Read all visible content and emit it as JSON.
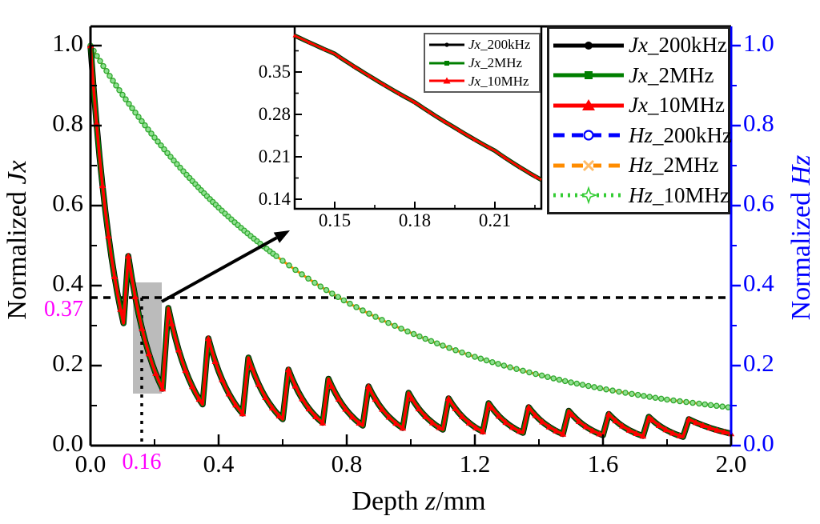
{
  "chart_data": {
    "type": "line",
    "title": "",
    "xlabel": "Depth z/mm",
    "ylabel_left": "Normalized Jx",
    "ylabel_right": "Normalized Hz",
    "xlim": [
      0,
      2.0
    ],
    "ylim_left": [
      0,
      1.0
    ],
    "ylim_right": [
      0,
      1.0
    ],
    "x_tick_values": [
      0,
      0.4,
      0.8,
      1.2,
      1.6,
      2.0
    ],
    "y_tick_values": [
      0,
      0.2,
      0.4,
      0.6,
      0.8,
      1.0
    ],
    "x_minor_ticks": [
      0.2,
      0.6,
      1.0,
      1.4,
      1.8
    ],
    "y_minor_ticks": [
      0.1,
      0.3,
      0.5,
      0.7,
      0.9
    ],
    "grid": false,
    "legend_position": "top-right",
    "note": "The three Jx curves (200kHz, 2MHz, 10MHz) overlap into one decaying sawtooth; the three Hz curves overlap into one smooth exponential decay.",
    "series": [
      {
        "name": "Jx_200kHz",
        "axis": "left",
        "color": "#000000",
        "linestyle": "solid",
        "marker": "filled-circle"
      },
      {
        "name": "Jx_2MHz",
        "axis": "left",
        "color": "#007F00",
        "linestyle": "solid",
        "marker": "filled-square"
      },
      {
        "name": "Jx_10MHz",
        "axis": "left",
        "color": "#FF0000",
        "linestyle": "solid",
        "marker": "filled-triangle"
      },
      {
        "name": "Hz_200kHz",
        "axis": "right",
        "color": "#0000FF",
        "linestyle": "dashed",
        "marker": "open-circle"
      },
      {
        "name": "Hz_2MHz",
        "axis": "right",
        "color": "#FF8C00",
        "linestyle": "dashed",
        "marker": "open-x"
      },
      {
        "name": "Hz_10MHz",
        "axis": "right",
        "color": "#33CC33",
        "linestyle": "dotted",
        "marker": "open-star"
      }
    ],
    "jx_profile": {
      "start": [
        0,
        1.0
      ],
      "first_trough": [
        0.103,
        0.306
      ],
      "teeth_peak_trough": [
        [
          0.118,
          0.474,
          0.225,
          0.142
        ],
        [
          0.243,
          0.344,
          0.35,
          0.103
        ],
        [
          0.368,
          0.268,
          0.475,
          0.08
        ],
        [
          0.493,
          0.22,
          0.6,
          0.066
        ],
        [
          0.618,
          0.19,
          0.725,
          0.057
        ],
        [
          0.743,
          0.167,
          0.85,
          0.05
        ],
        [
          0.868,
          0.148,
          0.975,
          0.044
        ],
        [
          0.993,
          0.132,
          1.1,
          0.04
        ],
        [
          1.118,
          0.118,
          1.225,
          0.035
        ],
        [
          1.243,
          0.106,
          1.35,
          0.032
        ],
        [
          1.368,
          0.096,
          1.475,
          0.029
        ],
        [
          1.493,
          0.087,
          1.6,
          0.026
        ],
        [
          1.618,
          0.079,
          1.725,
          0.024
        ],
        [
          1.743,
          0.072,
          1.85,
          0.022
        ],
        [
          1.868,
          0.066,
          2.0,
          0.03
        ]
      ]
    },
    "hz_points": [
      [
        0.0,
        1.0
      ],
      [
        0.1,
        0.877
      ],
      [
        0.2,
        0.77
      ],
      [
        0.3,
        0.677
      ],
      [
        0.4,
        0.595
      ],
      [
        0.5,
        0.524
      ],
      [
        0.6,
        0.462
      ],
      [
        0.7,
        0.407
      ],
      [
        0.8,
        0.359
      ],
      [
        0.9,
        0.318
      ],
      [
        1.0,
        0.282
      ],
      [
        1.1,
        0.25
      ],
      [
        1.2,
        0.222
      ],
      [
        1.3,
        0.198
      ],
      [
        1.4,
        0.177
      ],
      [
        1.5,
        0.158
      ],
      [
        1.6,
        0.142
      ],
      [
        1.7,
        0.128
      ],
      [
        1.8,
        0.115
      ],
      [
        1.9,
        0.105
      ],
      [
        2.0,
        0.095
      ]
    ]
  },
  "axes": {
    "left_title": {
      "prefix": "Normalized ",
      "var": "Jx"
    },
    "right_title": {
      "prefix": "Normalized ",
      "var": "Hz"
    },
    "bottom_title": {
      "prefix": "Depth ",
      "var": "z",
      "suffix": "/mm"
    },
    "x_tick_labels": [
      "0.0",
      "0.4",
      "0.8",
      "1.2",
      "1.6",
      "2.0"
    ],
    "y_left_tick_labels": [
      "0.0",
      "0.2",
      "0.4",
      "0.6",
      "0.8",
      "1.0"
    ],
    "y_right_tick_labels": [
      "0.0",
      "0.2",
      "0.4",
      "0.6",
      "0.8",
      "1.0"
    ],
    "left_color": "#000000",
    "right_color": "#0000FF"
  },
  "annotations": {
    "x_marker": {
      "label": "0.16",
      "value": 0.16
    },
    "y_marker": {
      "label": "0.37",
      "value": 0.37
    },
    "marker_color": "#FF00FF",
    "crosshair_style": "dashed-black",
    "highlight_box": {
      "z0": 0.1325,
      "z1": 0.2225,
      "v0": 0.13,
      "v1": 0.408,
      "color": "#BBBBBB"
    },
    "zoom_arrow": {
      "from": [
        0.2225,
        0.36
      ],
      "to": [
        0.6225,
        0.538
      ]
    }
  },
  "legend": {
    "items": [
      {
        "var": "Jx",
        "suffix": "_200kHz"
      },
      {
        "var": "Jx",
        "suffix": "_2MHz"
      },
      {
        "var": "Jx",
        "suffix": "_10MHz"
      },
      {
        "var": "Hz",
        "suffix": "_200kHz"
      },
      {
        "var": "Hz",
        "suffix": "_2MHz"
      },
      {
        "var": "Hz",
        "suffix": "_10MHz"
      }
    ]
  },
  "inset": {
    "x_tick_labels": [
      "0.15",
      "0.18",
      "0.21"
    ],
    "x_tick_values": [
      0.15,
      0.18,
      0.21
    ],
    "x_minor_ticks": [
      0.165,
      0.195,
      0.225
    ],
    "y_tick_labels": [
      "0.35",
      "0.28",
      "0.21",
      "0.14"
    ],
    "y_tick_values": [
      0.35,
      0.28,
      0.21,
      0.14
    ],
    "y_minor_ticks": [
      0.385,
      0.315,
      0.245,
      0.175
    ],
    "x_range": [
      0.135,
      0.2274
    ],
    "y_range": [
      0.124,
      0.425
    ],
    "curve": [
      [
        0.135,
        0.41
      ],
      [
        0.15,
        0.38
      ],
      [
        0.165,
        0.338
      ],
      [
        0.18,
        0.3
      ],
      [
        0.195,
        0.258
      ],
      [
        0.21,
        0.22
      ],
      [
        0.2274,
        0.172
      ]
    ],
    "legend": {
      "items": [
        {
          "var": "Jx",
          "suffix": "_200kHz"
        },
        {
          "var": "Jx",
          "suffix": "_2MHz"
        },
        {
          "var": "Jx",
          "suffix": "_10MHz"
        }
      ]
    }
  },
  "colors": {
    "jx_200khz": "#000000",
    "jx_2mhz": "#007F00",
    "jx_10mhz": "#FF0000",
    "hz_200khz": "#0000FF",
    "hz_2mhz": "#FF8C00",
    "hz_10mhz": "#33CC33",
    "annotation_magenta": "#FF00FF",
    "highlight_gray": "#BBBBBB",
    "background": "#FFFFFF"
  }
}
